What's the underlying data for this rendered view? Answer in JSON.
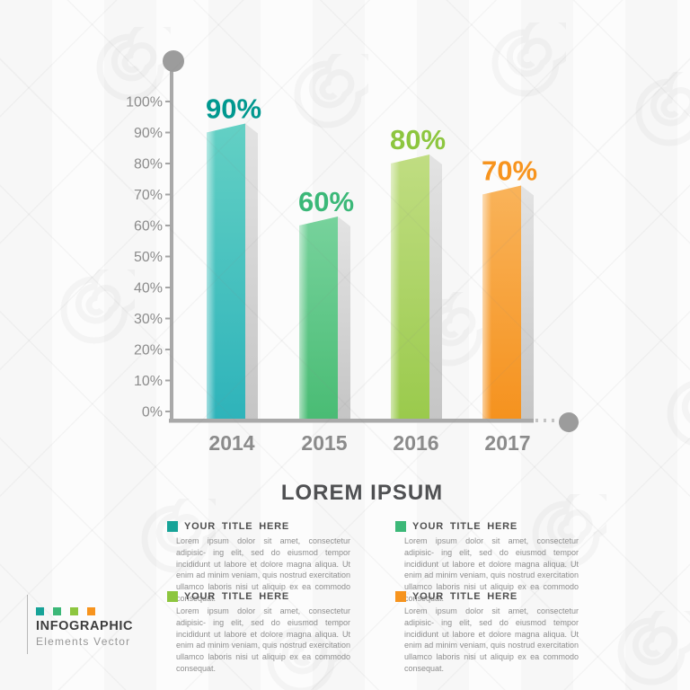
{
  "title": "LOREM IPSUM",
  "chart_data": {
    "type": "bar",
    "categories": [
      "2014",
      "2015",
      "2016",
      "2017"
    ],
    "values": [
      90,
      60,
      80,
      70
    ],
    "value_labels": [
      "90%",
      "60%",
      "80%",
      "70%"
    ],
    "value_label_colors": [
      "#00988f",
      "#3bb878",
      "#8dc63f",
      "#f7941e"
    ],
    "bar_gradients": [
      [
        "#63d0c4",
        "#2eb3ba"
      ],
      [
        "#77d29c",
        "#49bc74"
      ],
      [
        "#c0dd82",
        "#9aca4c"
      ],
      [
        "#f9b35a",
        "#f5921e"
      ]
    ],
    "side_face_gradient": [
      "#e3e3e3",
      "#c5c5c5"
    ],
    "y_ticks": [
      "0%",
      "10%",
      "20%",
      "30%",
      "40%",
      "50%",
      "60%",
      "70%",
      "80%",
      "90%",
      "100%"
    ],
    "ylim": [
      0,
      100
    ],
    "grid": false,
    "legend_position": "below",
    "axis_color": "#a9a9a9",
    "tick_label_color": "#8c8c8c",
    "category_label_color": "#8b8b8b",
    "axis_dot_color": "#9c9c9c",
    "title": "LOREM IPSUM",
    "xlabel": "",
    "ylabel": ""
  },
  "legend_items": [
    {
      "color": "#17a398",
      "label": "YOUR TITLE HERE",
      "body": "Lorem ipsum dolor sit amet, consectetur adipisic- ing elit, sed do eiusmod tempor incididunt ut labore et dolore magna aliqua. Ut enim ad minim veniam, quis nostrud exercitation ullamco laboris nisi ut aliquip ex ea commodo consequat."
    },
    {
      "color": "#3cb878",
      "label": "YOUR TITLE HERE",
      "body": "Lorem ipsum dolor sit amet, consectetur adipisic- ing elit, sed do eiusmod tempor incididunt ut labore et dolore magna aliqua. Ut enim ad minim veniam, quis nostrud exercitation ullamco laboris nisi ut aliquip ex ea commodo consequat."
    },
    {
      "color": "#8dc63f",
      "label": "YOUR TITLE HERE",
      "body": "Lorem ipsum dolor sit amet, consectetur adipisic- ing elit, sed do eiusmod tempor incididunt ut labore et dolore magna aliqua. Ut enim ad minim veniam, quis nostrud exercitation ullamco laboris nisi ut aliquip ex ea commodo consequat."
    },
    {
      "color": "#f7941e",
      "label": "YOUR TITLE HERE",
      "body": "Lorem ipsum dolor sit amet, consectetur adipisic- ing elit, sed do eiusmod tempor incididunt ut labore et dolore magna aliqua. Ut enim ad minim veniam, quis nostrud exercitation ullamco laboris nisi ut aliquip ex ea commodo consequat."
    }
  ],
  "footer_logo": {
    "line1": "INFOGRAPHIC",
    "line2": "Elements Vector",
    "square_colors": [
      "#17a398",
      "#3cb878",
      "#8dc63f",
      "#f7941e"
    ]
  }
}
